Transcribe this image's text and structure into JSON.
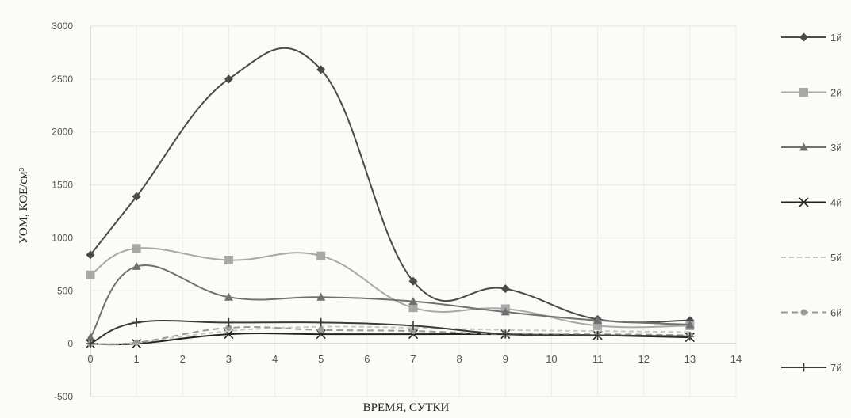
{
  "chart_data": {
    "type": "line",
    "title": "",
    "xlabel": "ВРЕМЯ, СУТКИ",
    "ylabel": "УОМ, КОЕ/см³",
    "xlim": [
      0,
      14
    ],
    "ylim": [
      -500,
      3000
    ],
    "x_ticks": [
      0,
      1,
      2,
      3,
      4,
      5,
      6,
      7,
      8,
      9,
      10,
      11,
      12,
      13,
      14
    ],
    "y_ticks": [
      -500,
      0,
      500,
      1000,
      1500,
      2000,
      2500,
      3000
    ],
    "grid": true,
    "legend_position": "right",
    "series": [
      {
        "name": "1й",
        "color": "#4a4a4a",
        "marker": "diamond",
        "dash": "",
        "x": [
          0,
          1,
          3,
          5,
          7,
          9,
          11,
          13
        ],
        "y": [
          840,
          1390,
          2500,
          2590,
          590,
          520,
          230,
          220
        ]
      },
      {
        "name": "2й",
        "color": "#a8a8a8",
        "marker": "square",
        "dash": "",
        "x": [
          0,
          1,
          3,
          5,
          7,
          9,
          11,
          13
        ],
        "y": [
          650,
          900,
          790,
          830,
          340,
          330,
          170,
          170
        ]
      },
      {
        "name": "3й",
        "color": "#707070",
        "marker": "triangle",
        "dash": "",
        "x": [
          0,
          1,
          3,
          5,
          7,
          9,
          11,
          13
        ],
        "y": [
          60,
          730,
          440,
          440,
          400,
          300,
          220,
          180
        ]
      },
      {
        "name": "4й",
        "color": "#222222",
        "marker": "x",
        "dash": "",
        "x": [
          0,
          1,
          3,
          5,
          7,
          9,
          11,
          13
        ],
        "y": [
          0,
          0,
          90,
          90,
          90,
          90,
          80,
          60
        ]
      },
      {
        "name": "5й",
        "color": "#c8c8c8",
        "marker": "none",
        "dash": "6,4",
        "x": [
          0,
          1,
          3,
          5,
          7,
          9,
          11,
          13
        ],
        "y": [
          0,
          10,
          120,
          160,
          150,
          130,
          120,
          110
        ]
      },
      {
        "name": "6й",
        "color": "#9a9a9a",
        "marker": "circle",
        "dash": "8,5",
        "x": [
          0,
          1,
          3,
          5,
          7,
          9,
          11,
          13
        ],
        "y": [
          0,
          10,
          150,
          130,
          120,
          90,
          90,
          80
        ]
      },
      {
        "name": "7й",
        "color": "#3a3a3a",
        "marker": "plus",
        "dash": "",
        "x": [
          0,
          1,
          3,
          5,
          7,
          9,
          11,
          13
        ],
        "y": [
          0,
          200,
          200,
          200,
          170,
          90,
          80,
          70
        ]
      }
    ]
  }
}
